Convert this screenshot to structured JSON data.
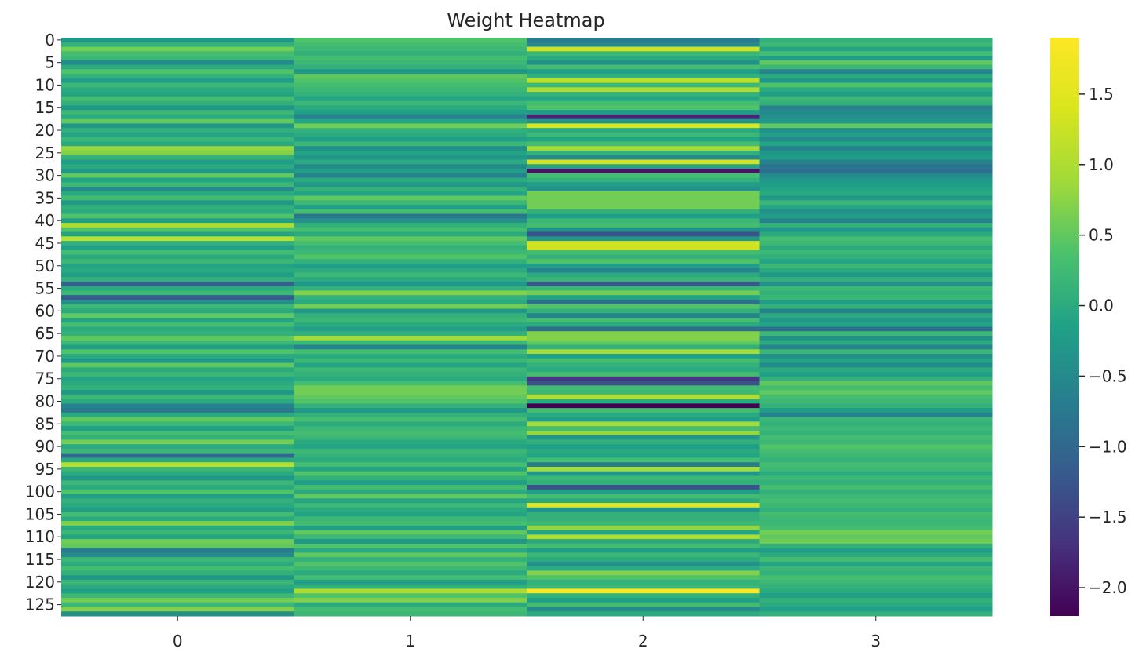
{
  "chart_data": {
    "type": "heatmap",
    "title": "Weight Heatmap",
    "xlabel": "",
    "ylabel": "",
    "colormap": "viridis",
    "x_categories": [
      0,
      1,
      2,
      3
    ],
    "x_tick_labels": [
      "0",
      "1",
      "2",
      "3"
    ],
    "y_tick_labels": [
      "0",
      "5",
      "10",
      "15",
      "20",
      "25",
      "30",
      "35",
      "40",
      "45",
      "50",
      "55",
      "60",
      "65",
      "70",
      "75",
      "80",
      "85",
      "90",
      "95",
      "100",
      "105",
      "110",
      "115",
      "120",
      "125"
    ],
    "y_tick_values": [
      0,
      5,
      10,
      15,
      20,
      25,
      30,
      35,
      40,
      45,
      50,
      55,
      60,
      65,
      70,
      75,
      80,
      85,
      90,
      95,
      100,
      105,
      110,
      115,
      120,
      125
    ],
    "n_rows": 128,
    "vmin": -2.2,
    "vmax": 1.9,
    "colorbar_ticks": [
      1.5,
      1.0,
      0.5,
      0.0,
      -0.5,
      -1.0,
      -1.5,
      -2.0
    ],
    "colorbar_tick_labels": [
      "1.5",
      "1.0",
      "0.5",
      "0.0",
      "−0.5",
      "−1.0",
      "−1.5",
      "−2.0"
    ],
    "values": [
      [
        -0.3,
        0.4,
        -0.7,
        0.1
      ],
      [
        0.1,
        0.3,
        -0.5,
        0.2
      ],
      [
        0.6,
        0.2,
        1.3,
        -0.1
      ],
      [
        0.3,
        0.1,
        0.2,
        0.3
      ],
      [
        0.2,
        0.3,
        0.0,
        -0.2
      ],
      [
        -0.5,
        0.2,
        -0.4,
        0.5
      ],
      [
        0.0,
        0.1,
        0.3,
        0.2
      ],
      [
        0.4,
        -0.3,
        -0.2,
        -0.6
      ],
      [
        0.1,
        0.5,
        0.1,
        0.0
      ],
      [
        -0.2,
        0.4,
        1.1,
        -0.3
      ],
      [
        0.2,
        0.3,
        0.2,
        0.4
      ],
      [
        0.0,
        0.2,
        1.0,
        0.0
      ],
      [
        -0.1,
        0.1,
        0.1,
        -0.2
      ],
      [
        0.3,
        -0.1,
        -0.1,
        0.2
      ],
      [
        0.1,
        0.2,
        0.3,
        0.1
      ],
      [
        -0.3,
        0.0,
        0.4,
        -0.6
      ],
      [
        0.2,
        -0.2,
        -0.2,
        -0.5
      ],
      [
        0.0,
        -0.6,
        -1.8,
        -0.4
      ],
      [
        0.5,
        -0.1,
        -0.3,
        -0.3
      ],
      [
        -0.3,
        0.6,
        1.4,
        0.5
      ],
      [
        0.1,
        0.1,
        0.0,
        -0.4
      ],
      [
        -0.1,
        0.0,
        0.2,
        -0.2
      ],
      [
        0.2,
        -0.2,
        -0.1,
        -0.5
      ],
      [
        0.0,
        0.2,
        0.3,
        -0.1
      ],
      [
        0.8,
        -0.4,
        0.9,
        -0.6
      ],
      [
        0.7,
        -0.1,
        0.1,
        -0.3
      ],
      [
        0.1,
        -0.3,
        -0.5,
        -0.2
      ],
      [
        -0.2,
        0.0,
        1.3,
        -0.6
      ],
      [
        0.0,
        -0.5,
        -0.1,
        -0.8
      ],
      [
        -0.3,
        -0.2,
        -2.0,
        -0.9
      ],
      [
        0.5,
        -0.6,
        0.3,
        -0.5
      ],
      [
        -0.1,
        0.0,
        0.1,
        -0.3
      ],
      [
        0.2,
        -0.3,
        -0.2,
        -0.2
      ],
      [
        -0.5,
        0.1,
        -0.4,
        -0.1
      ],
      [
        0.0,
        -0.1,
        0.6,
        0.0
      ],
      [
        0.3,
        0.5,
        0.6,
        -0.3
      ],
      [
        -0.3,
        0.2,
        0.6,
        0.2
      ],
      [
        0.1,
        -0.2,
        0.6,
        -0.1
      ],
      [
        0.0,
        0.3,
        0.1,
        -0.4
      ],
      [
        0.4,
        -0.8,
        -0.2,
        -0.2
      ],
      [
        -0.2,
        -0.4,
        0.2,
        -0.6
      ],
      [
        1.0,
        0.1,
        0.3,
        0.1
      ],
      [
        0.4,
        0.3,
        -0.4,
        -0.3
      ],
      [
        -0.1,
        0.0,
        -1.3,
        0.0
      ],
      [
        1.1,
        0.5,
        -0.3,
        0.3
      ],
      [
        0.1,
        0.3,
        1.3,
        0.2
      ],
      [
        -0.2,
        0.1,
        1.3,
        0.0
      ],
      [
        0.3,
        0.2,
        0.3,
        0.2
      ],
      [
        0.0,
        0.4,
        0.1,
        0.1
      ],
      [
        0.2,
        0.1,
        0.4,
        -0.1
      ],
      [
        -0.1,
        -0.2,
        -0.2,
        0.2
      ],
      [
        0.0,
        0.0,
        -0.6,
        0.0
      ],
      [
        -0.2,
        0.2,
        0.0,
        -0.3
      ],
      [
        0.1,
        0.0,
        0.2,
        0.1
      ],
      [
        -1.1,
        -0.3,
        -1.2,
        -0.4
      ],
      [
        0.0,
        0.1,
        0.2,
        0.2
      ],
      [
        0.2,
        0.7,
        0.6,
        0.1
      ],
      [
        -1.2,
        0.1,
        -0.1,
        0.2
      ],
      [
        -0.4,
        0.0,
        -0.9,
        -0.2
      ],
      [
        0.2,
        0.6,
        0.4,
        0.1
      ],
      [
        0.0,
        -0.3,
        0.1,
        -0.6
      ],
      [
        0.5,
        0.1,
        -0.6,
        0.0
      ],
      [
        -0.1,
        0.2,
        0.3,
        -0.3
      ],
      [
        0.3,
        0.0,
        0.0,
        -0.1
      ],
      [
        0.0,
        -0.2,
        -0.9,
        -0.9
      ],
      [
        0.1,
        0.1,
        0.7,
        0.2
      ],
      [
        0.5,
        0.9,
        0.7,
        -0.4
      ],
      [
        0.2,
        0.2,
        0.5,
        0.0
      ],
      [
        -0.2,
        -0.6,
        0.1,
        -0.6
      ],
      [
        0.4,
        0.3,
        0.9,
        0.2
      ],
      [
        0.0,
        0.0,
        -0.2,
        -0.4
      ],
      [
        -0.3,
        0.2,
        0.3,
        -0.1
      ],
      [
        0.5,
        -0.1,
        0.1,
        -0.5
      ],
      [
        0.0,
        0.2,
        0.0,
        0.0
      ],
      [
        0.2,
        0.1,
        0.3,
        -0.2
      ],
      [
        -0.1,
        0.0,
        -1.6,
        0.1
      ],
      [
        0.0,
        0.3,
        -1.3,
        0.5
      ],
      [
        0.1,
        0.6,
        0.3,
        0.3
      ],
      [
        -0.3,
        0.6,
        0.2,
        0.5
      ],
      [
        0.2,
        0.5,
        1.0,
        0.3
      ],
      [
        0.0,
        0.4,
        0.0,
        0.2
      ],
      [
        -0.6,
        0.1,
        -2.3,
        0.1
      ],
      [
        -0.8,
        -0.3,
        0.3,
        -0.2
      ],
      [
        0.0,
        0.1,
        0.0,
        -0.6
      ],
      [
        0.5,
        0.3,
        -0.2,
        0.2
      ],
      [
        0.2,
        0.0,
        0.9,
        0.1
      ],
      [
        -0.2,
        0.2,
        0.3,
        0.2
      ],
      [
        0.3,
        0.3,
        0.8,
        0.1
      ],
      [
        0.1,
        0.2,
        -0.3,
        0.3
      ],
      [
        0.6,
        0.0,
        0.1,
        0.2
      ],
      [
        0.0,
        -0.1,
        -0.2,
        0.4
      ],
      [
        0.2,
        0.2,
        0.0,
        0.3
      ],
      [
        -1.0,
        0.1,
        -0.1,
        0.2
      ],
      [
        0.0,
        0.0,
        0.3,
        0.1
      ],
      [
        1.1,
        0.3,
        -0.7,
        0.3
      ],
      [
        0.2,
        -0.1,
        0.9,
        0.2
      ],
      [
        0.0,
        0.4,
        -0.3,
        0.0
      ],
      [
        -0.3,
        0.1,
        0.2,
        0.2
      ],
      [
        0.2,
        -0.2,
        0.1,
        0.1
      ],
      [
        0.0,
        0.3,
        -1.3,
        0.3
      ],
      [
        0.4,
        0.0,
        -0.2,
        0.1
      ],
      [
        -0.2,
        0.5,
        0.3,
        0.2
      ],
      [
        0.1,
        -0.1,
        0.0,
        0.3
      ],
      [
        0.0,
        0.2,
        1.5,
        0.2
      ],
      [
        -0.2,
        0.0,
        -0.3,
        0.1
      ],
      [
        0.3,
        -0.1,
        0.1,
        0.3
      ],
      [
        0.0,
        0.2,
        0.1,
        0.2
      ],
      [
        0.7,
        0.3,
        0.2,
        0.2
      ],
      [
        0.0,
        -0.2,
        0.8,
        0.3
      ],
      [
        0.2,
        0.5,
        -0.1,
        0.6
      ],
      [
        -0.1,
        0.2,
        1.0,
        0.5
      ],
      [
        0.6,
        -0.3,
        0.0,
        0.6
      ],
      [
        0.5,
        0.4,
        0.3,
        0.1
      ],
      [
        -0.7,
        0.0,
        -0.2,
        -0.2
      ],
      [
        -0.5,
        0.5,
        0.2,
        0.0
      ],
      [
        0.2,
        0.1,
        0.0,
        0.3
      ],
      [
        0.0,
        0.4,
        -0.4,
        -0.1
      ],
      [
        0.3,
        0.2,
        0.0,
        0.2
      ],
      [
        0.1,
        0.0,
        0.7,
        0.1
      ],
      [
        -0.3,
        0.3,
        0.4,
        0.3
      ],
      [
        0.2,
        -0.2,
        0.1,
        0.2
      ],
      [
        0.0,
        0.1,
        0.2,
        0.1
      ],
      [
        -0.2,
        1.0,
        1.9,
        0.0
      ],
      [
        0.2,
        0.4,
        0.1,
        -0.2
      ],
      [
        0.6,
        0.7,
        -0.2,
        0.1
      ],
      [
        0.2,
        0.0,
        0.3,
        0.0
      ],
      [
        0.7,
        0.3,
        -0.5,
        -0.2
      ],
      [
        -0.4,
        0.2,
        0.0,
        0.1
      ]
    ]
  }
}
